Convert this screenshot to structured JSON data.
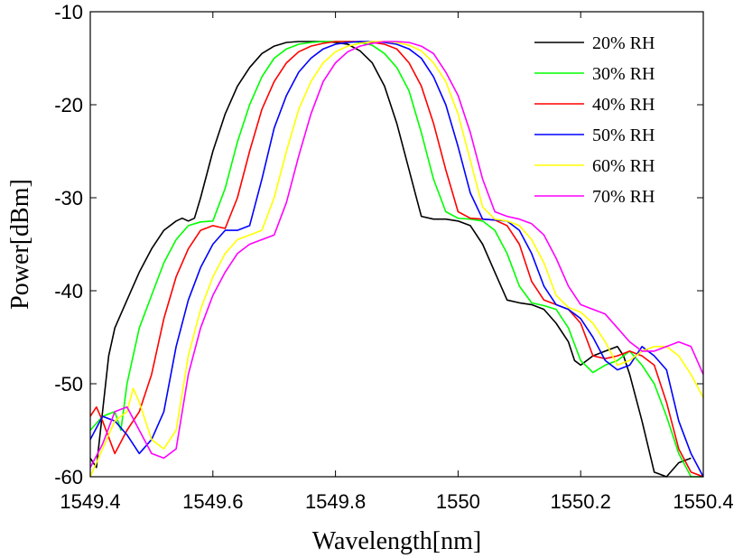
{
  "chart_data": {
    "type": "line",
    "xlabel": "Wavelength[nm]",
    "ylabel": "Power[dBm]",
    "xlim": [
      1549.4,
      1550.4
    ],
    "ylim": [
      -60,
      -10
    ],
    "xticks": [
      1549.4,
      1549.6,
      1549.8,
      1550,
      1550.2,
      1550.4
    ],
    "xtick_labels": [
      "1549.4",
      "1549.6",
      "1549.8",
      "1550",
      "1550.2",
      "1550.4"
    ],
    "yticks": [
      -60,
      -50,
      -40,
      -30,
      -20,
      -10
    ],
    "ytick_labels": [
      "-60",
      "-50",
      "-40",
      "-30",
      "-20",
      "-10"
    ],
    "grid": false,
    "legend_position": "top-right",
    "series": [
      {
        "name": "20% RH",
        "color": "#000000",
        "x": [
          1549.4,
          1549.41,
          1549.42,
          1549.43,
          1549.44,
          1549.46,
          1549.48,
          1549.5,
          1549.52,
          1549.54,
          1549.55,
          1549.56,
          1549.57,
          1549.58,
          1549.6,
          1549.62,
          1549.64,
          1549.66,
          1549.68,
          1549.7,
          1549.72,
          1549.74,
          1549.76,
          1549.78,
          1549.8,
          1549.82,
          1549.84,
          1549.86,
          1549.88,
          1549.9,
          1549.92,
          1549.93,
          1549.94,
          1549.96,
          1549.98,
          1550,
          1550.02,
          1550.04,
          1550.06,
          1550.08,
          1550.1,
          1550.12,
          1550.14,
          1550.16,
          1550.18,
          1550.19,
          1550.2,
          1550.22,
          1550.24,
          1550.26,
          1550.27,
          1550.28,
          1550.3,
          1550.32,
          1550.34,
          1550.36,
          1550.38
        ],
        "y": [
          -58,
          -59,
          -53,
          -47,
          -44,
          -41,
          -38,
          -35.5,
          -33.5,
          -32.5,
          -32.2,
          -32.5,
          -32.2,
          -30,
          -25,
          -21,
          -18,
          -16,
          -14.5,
          -13.7,
          -13.3,
          -13.2,
          -13.2,
          -13.2,
          -13.3,
          -13.5,
          -14.2,
          -15.5,
          -18,
          -22,
          -27,
          -29.5,
          -32,
          -32.3,
          -32.3,
          -32.5,
          -33,
          -35,
          -38,
          -41,
          -41.3,
          -41.5,
          -42,
          -43.5,
          -45.5,
          -47.5,
          -48,
          -47,
          -46.5,
          -46,
          -47,
          -49,
          -54,
          -59.5,
          -60,
          -58.5,
          -58
        ]
      },
      {
        "name": "30% RH",
        "color": "#00ff00",
        "x": [
          1549.4,
          1549.42,
          1549.44,
          1549.45,
          1549.46,
          1549.48,
          1549.5,
          1549.52,
          1549.54,
          1549.56,
          1549.58,
          1549.6,
          1549.62,
          1549.64,
          1549.66,
          1549.68,
          1549.7,
          1549.72,
          1549.74,
          1549.76,
          1549.78,
          1549.8,
          1549.82,
          1549.84,
          1549.86,
          1549.88,
          1549.9,
          1549.92,
          1549.94,
          1549.96,
          1549.98,
          1550,
          1550.02,
          1550.04,
          1550.06,
          1550.08,
          1550.1,
          1550.12,
          1550.14,
          1550.16,
          1550.18,
          1550.2,
          1550.22,
          1550.24,
          1550.26,
          1550.28,
          1550.3,
          1550.32,
          1550.34,
          1550.36,
          1550.38,
          1550.4
        ],
        "y": [
          -55,
          -53.5,
          -53,
          -55,
          -50,
          -44,
          -40.5,
          -37,
          -34.5,
          -33,
          -32.6,
          -32.5,
          -29,
          -24,
          -20,
          -17,
          -15,
          -14,
          -13.5,
          -13.3,
          -13.2,
          -13.2,
          -13.2,
          -13.3,
          -13.6,
          -14.5,
          -16,
          -18.5,
          -23,
          -28,
          -31.5,
          -32.2,
          -32.3,
          -32.5,
          -33.5,
          -36,
          -39.5,
          -41.3,
          -41.6,
          -42,
          -44,
          -47.5,
          -48.8,
          -48,
          -47.5,
          -46.5,
          -48,
          -50,
          -53.5,
          -57.5,
          -60,
          -60
        ]
      },
      {
        "name": "40% RH",
        "color": "#ff0000",
        "x": [
          1549.4,
          1549.41,
          1549.42,
          1549.44,
          1549.46,
          1549.48,
          1549.5,
          1549.52,
          1549.54,
          1549.56,
          1549.58,
          1549.6,
          1549.62,
          1549.64,
          1549.66,
          1549.68,
          1549.7,
          1549.72,
          1549.74,
          1549.76,
          1549.78,
          1549.8,
          1549.82,
          1549.84,
          1549.86,
          1549.88,
          1549.9,
          1549.92,
          1549.94,
          1549.96,
          1549.98,
          1550,
          1550.02,
          1550.04,
          1550.06,
          1550.08,
          1550.1,
          1550.12,
          1550.14,
          1550.16,
          1550.18,
          1550.2,
          1550.22,
          1550.24,
          1550.26,
          1550.28,
          1550.3,
          1550.32,
          1550.34,
          1550.36,
          1550.38,
          1550.4
        ],
        "y": [
          -53.5,
          -52.5,
          -54,
          -57.5,
          -55,
          -53,
          -49,
          -43,
          -38.5,
          -35.5,
          -33.5,
          -33,
          -33.3,
          -30,
          -25,
          -20.5,
          -17.5,
          -15.5,
          -14.3,
          -13.7,
          -13.4,
          -13.2,
          -13.2,
          -13.2,
          -13.3,
          -13.5,
          -14,
          -15.5,
          -18,
          -22,
          -27,
          -31.5,
          -32.2,
          -32.3,
          -32.4,
          -33,
          -35,
          -39,
          -41,
          -41.5,
          -42,
          -43.5,
          -47,
          -47.3,
          -47,
          -46.5,
          -47,
          -48,
          -52,
          -57,
          -59.5,
          -60
        ]
      },
      {
        "name": "50% RH",
        "color": "#0000ff",
        "x": [
          1549.4,
          1549.42,
          1549.44,
          1549.46,
          1549.48,
          1549.5,
          1549.52,
          1549.54,
          1549.56,
          1549.58,
          1549.6,
          1549.62,
          1549.64,
          1549.66,
          1549.68,
          1549.7,
          1549.72,
          1549.74,
          1549.76,
          1549.78,
          1549.8,
          1549.82,
          1549.84,
          1549.86,
          1549.88,
          1549.9,
          1549.92,
          1549.94,
          1549.96,
          1549.98,
          1550,
          1550.02,
          1550.04,
          1550.06,
          1550.08,
          1550.1,
          1550.12,
          1550.14,
          1550.16,
          1550.18,
          1550.2,
          1550.22,
          1550.24,
          1550.26,
          1550.28,
          1550.3,
          1550.32,
          1550.34,
          1550.36,
          1550.38,
          1550.4
        ],
        "y": [
          -56,
          -53.5,
          -54,
          -55.5,
          -57.5,
          -56,
          -53,
          -46,
          -41,
          -37.5,
          -35,
          -33.5,
          -33.5,
          -33,
          -28,
          -22.5,
          -19,
          -16.5,
          -15,
          -14,
          -13.5,
          -13.3,
          -13.2,
          -13.2,
          -13.3,
          -13.5,
          -14,
          -15,
          -17,
          -20,
          -24.5,
          -29.5,
          -32.3,
          -32.4,
          -32.5,
          -33.5,
          -36,
          -39.5,
          -41.5,
          -42,
          -43,
          -45,
          -47.5,
          -48.5,
          -48,
          -46,
          -47,
          -48.5,
          -54,
          -57.5,
          -60
        ]
      },
      {
        "name": "60% RH",
        "color": "#ffff00",
        "x": [
          1549.4,
          1549.42,
          1549.44,
          1549.46,
          1549.47,
          1549.48,
          1549.5,
          1549.52,
          1549.54,
          1549.56,
          1549.58,
          1549.6,
          1549.62,
          1549.64,
          1549.66,
          1549.68,
          1549.7,
          1549.72,
          1549.74,
          1549.76,
          1549.78,
          1549.8,
          1549.82,
          1549.84,
          1549.86,
          1549.88,
          1549.9,
          1549.92,
          1549.94,
          1549.96,
          1549.98,
          1550,
          1550.02,
          1550.04,
          1550.06,
          1550.08,
          1550.1,
          1550.12,
          1550.14,
          1550.16,
          1550.18,
          1550.2,
          1550.22,
          1550.24,
          1550.26,
          1550.28,
          1550.3,
          1550.32,
          1550.34,
          1550.36,
          1550.38,
          1550.4
        ],
        "y": [
          -60,
          -57,
          -54,
          -53,
          -50.5,
          -52,
          -56,
          -57,
          -55,
          -47,
          -42,
          -38.5,
          -36,
          -34.5,
          -34,
          -33.5,
          -30,
          -25,
          -20.5,
          -17.5,
          -15.5,
          -14.3,
          -13.7,
          -13.4,
          -13.2,
          -13.2,
          -13.3,
          -13.6,
          -14.2,
          -15.5,
          -17.5,
          -21,
          -26,
          -31,
          -32.3,
          -32.5,
          -33,
          -34.5,
          -37,
          -40.5,
          -41.8,
          -42.3,
          -43.5,
          -45.5,
          -48,
          -47.5,
          -46.5,
          -46,
          -46,
          -47,
          -49,
          -51.5
        ]
      },
      {
        "name": "70% RH",
        "color": "#ff00ff",
        "x": [
          1549.4,
          1549.42,
          1549.44,
          1549.46,
          1549.48,
          1549.5,
          1549.52,
          1549.54,
          1549.56,
          1549.58,
          1549.6,
          1549.62,
          1549.64,
          1549.66,
          1549.68,
          1549.7,
          1549.72,
          1549.74,
          1549.76,
          1549.78,
          1549.8,
          1549.82,
          1549.84,
          1549.86,
          1549.88,
          1549.9,
          1549.92,
          1549.94,
          1549.96,
          1549.98,
          1550,
          1550.02,
          1550.04,
          1550.06,
          1550.08,
          1550.1,
          1550.12,
          1550.14,
          1550.16,
          1550.18,
          1550.2,
          1550.22,
          1550.24,
          1550.26,
          1550.28,
          1550.3,
          1550.32,
          1550.34,
          1550.36,
          1550.38,
          1550.4
        ],
        "y": [
          -59,
          -56.5,
          -53,
          -52.5,
          -55,
          -57.5,
          -58,
          -57,
          -49,
          -44,
          -40.5,
          -38,
          -36,
          -35,
          -34.5,
          -34,
          -30.5,
          -25.5,
          -21,
          -17.5,
          -15.5,
          -14.3,
          -13.7,
          -13.4,
          -13.2,
          -13.2,
          -13.3,
          -13.7,
          -14.5,
          -16.5,
          -19,
          -23,
          -28,
          -31.5,
          -32,
          -32.3,
          -32.8,
          -34,
          -36.5,
          -39.5,
          -41.5,
          -42,
          -42.5,
          -44,
          -45.5,
          -46.5,
          -46.5,
          -46,
          -45.5,
          -46,
          -49
        ]
      }
    ]
  }
}
